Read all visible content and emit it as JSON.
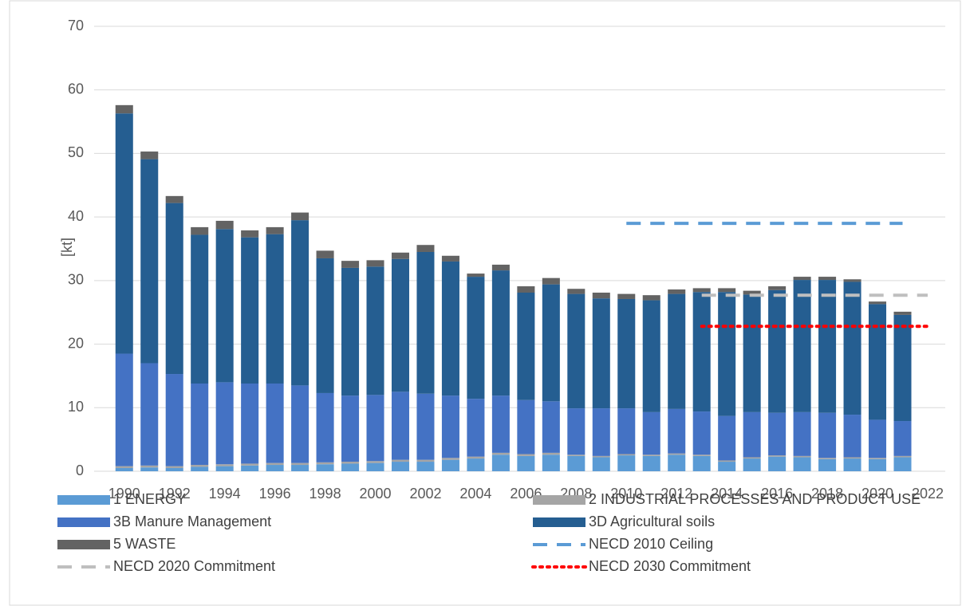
{
  "chart_data": {
    "type": "stacked_bar",
    "y_label": "[kt]",
    "x": [
      1990,
      1991,
      1992,
      1993,
      1994,
      1995,
      1996,
      1997,
      1998,
      1999,
      2000,
      2001,
      2002,
      2003,
      2004,
      2005,
      2006,
      2007,
      2008,
      2009,
      2010,
      2011,
      2012,
      2013,
      2014,
      2015,
      2016,
      2017,
      2018,
      2019,
      2020,
      2021
    ],
    "xlim": [
      1988.8,
      2022.7
    ],
    "xticks": [
      1990,
      1992,
      1994,
      1996,
      1998,
      2000,
      2002,
      2004,
      2006,
      2008,
      2010,
      2012,
      2014,
      2016,
      2018,
      2020,
      2022
    ],
    "ylim": [
      0,
      70
    ],
    "yticks": [
      0,
      10,
      20,
      30,
      40,
      50,
      60,
      70
    ],
    "grid": true,
    "series": [
      {
        "name": "1 ENERGY",
        "color": "#5b9bd5",
        "values": [
          0.5,
          0.6,
          0.5,
          0.7,
          0.8,
          0.9,
          1.0,
          1.0,
          1.1,
          1.2,
          1.3,
          1.5,
          1.5,
          1.8,
          2.0,
          2.6,
          2.4,
          2.6,
          2.4,
          2.2,
          2.5,
          2.4,
          2.6,
          2.4,
          1.5,
          2.0,
          2.3,
          2.2,
          1.9,
          2.0,
          1.9,
          2.2
        ]
      },
      {
        "name": "2 INDUSTRIAL PROCESSES AND PRODUCT USE",
        "color": "#a5a5a5",
        "values": [
          0.3,
          0.3,
          0.3,
          0.3,
          0.3,
          0.3,
          0.3,
          0.3,
          0.3,
          0.3,
          0.3,
          0.3,
          0.3,
          0.3,
          0.3,
          0.3,
          0.3,
          0.3,
          0.2,
          0.2,
          0.2,
          0.2,
          0.2,
          0.2,
          0.2,
          0.2,
          0.2,
          0.2,
          0.2,
          0.2,
          0.2,
          0.2
        ]
      },
      {
        "name": "3B  Manure Management",
        "color": "#4472c4",
        "values": [
          17.7,
          16.1,
          14.5,
          12.8,
          12.9,
          12.6,
          12.5,
          12.2,
          10.9,
          10.4,
          10.4,
          10.7,
          10.4,
          9.8,
          9.1,
          9.0,
          8.5,
          8.1,
          7.3,
          7.5,
          7.2,
          6.7,
          7.0,
          6.8,
          7.0,
          7.1,
          6.7,
          6.9,
          7.1,
          6.7,
          6.0,
          5.5
        ]
      },
      {
        "name": "3D Agricultural soils",
        "color": "#255e91",
        "values": [
          37.8,
          32.1,
          26.9,
          23.4,
          24.1,
          23.0,
          23.5,
          26.0,
          21.2,
          20.1,
          20.2,
          20.9,
          22.3,
          21.1,
          19.2,
          19.7,
          16.9,
          18.4,
          18.0,
          17.3,
          17.2,
          17.6,
          18.1,
          18.8,
          19.5,
          18.5,
          19.3,
          20.8,
          20.9,
          20.9,
          18.2,
          16.7
        ]
      },
      {
        "name": "5 WASTE",
        "color": "#636363",
        "values": [
          1.3,
          1.2,
          1.1,
          1.2,
          1.3,
          1.1,
          1.1,
          1.2,
          1.2,
          1.1,
          1.0,
          1.0,
          1.1,
          0.9,
          0.5,
          0.9,
          1.0,
          1.0,
          0.8,
          0.9,
          0.8,
          0.8,
          0.7,
          0.6,
          0.6,
          0.6,
          0.6,
          0.5,
          0.5,
          0.4,
          0.4,
          0.5
        ]
      }
    ],
    "lines": [
      {
        "name": "NECD 2010 Ceiling",
        "color": "#5b9bd5",
        "dash": "dashed",
        "x": [
          2010,
          2021
        ],
        "values": [
          39,
          39
        ]
      },
      {
        "name": "NECD 2020 Commitment",
        "color": "#bfbfbf",
        "dash": "dashed",
        "x": [
          2013,
          2022
        ],
        "values": [
          27.7,
          27.7
        ]
      },
      {
        "name": "NECD 2030 Commitment",
        "color": "#ff0000",
        "dash": "dotted",
        "x": [
          2013,
          2022
        ],
        "values": [
          22.8,
          22.8
        ]
      }
    ]
  }
}
